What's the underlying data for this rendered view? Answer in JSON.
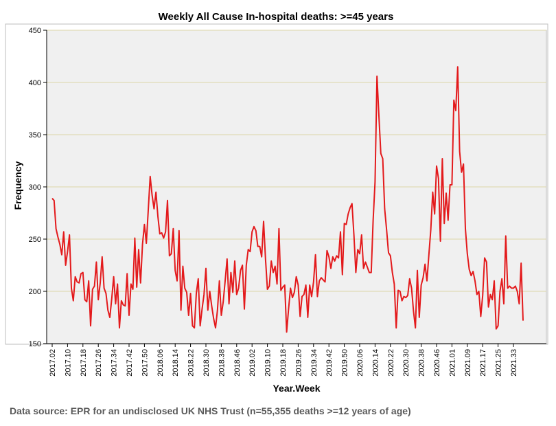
{
  "chart_data": {
    "type": "line",
    "title": "Weekly All Cause In-hospital deaths: >=45 years",
    "xlabel": "Year.Week",
    "ylabel": "Frequency",
    "ylim": [
      150,
      450
    ],
    "yticks": [
      150,
      200,
      250,
      300,
      350,
      400,
      450
    ],
    "x_tick_labels": [
      "2017.02",
      "2017.10",
      "2017.18",
      "2017.26",
      "2017.34",
      "2017.42",
      "2017.50",
      "2018.06",
      "2018.14",
      "2018.22",
      "2018.30",
      "2018.38",
      "2018.46",
      "2019.02",
      "2019.10",
      "2019.18",
      "2019.26",
      "2019.34",
      "2019.42",
      "2019.50",
      "2020.06",
      "2020.14",
      "2020.22",
      "2020.30",
      "2020.38",
      "2020.46",
      "2021.01",
      "2021.09",
      "2021.17",
      "2021.25",
      "2021.33"
    ],
    "gridlines": "horizontal",
    "line_color": "#e31a1c",
    "series": [
      {
        "name": "Frequency",
        "start_label": "2017.02",
        "values": [
          289,
          287,
          260,
          252,
          245,
          235,
          257,
          225,
          238,
          254,
          203,
          191,
          214,
          209,
          208,
          217,
          218,
          192,
          190,
          210,
          167,
          202,
          205,
          228,
          192,
          208,
          233,
          203,
          198,
          182,
          175,
          193,
          214,
          188,
          207,
          165,
          191,
          187,
          186,
          217,
          177,
          207,
          202,
          251,
          204,
          240,
          208,
          245,
          264,
          246,
          278,
          310,
          292,
          279,
          295,
          272,
          255,
          256,
          251,
          257,
          287,
          234,
          236,
          260,
          220,
          210,
          258,
          182,
          224,
          203,
          199,
          177,
          198,
          167,
          165,
          198,
          212,
          167,
          183,
          197,
          222,
          182,
          200,
          186,
          174,
          165,
          182,
          210,
          177,
          190,
          210,
          231,
          188,
          218,
          199,
          229,
          197,
          203,
          220,
          225,
          183,
          225,
          240,
          238,
          257,
          262,
          258,
          243,
          243,
          233,
          267,
          231,
          202,
          205,
          229,
          218,
          224,
          207,
          260,
          201,
          204,
          206,
          161,
          183,
          203,
          194,
          199,
          214,
          206,
          176,
          195,
          197,
          206,
          175,
          206,
          195,
          209,
          235,
          195,
          210,
          213,
          211,
          209,
          239,
          233,
          222,
          233,
          229,
          234,
          232,
          257,
          216,
          265,
          264,
          274,
          280,
          284,
          254,
          218,
          240,
          236,
          254,
          222,
          228,
          223,
          218,
          218,
          268,
          305,
          406,
          368,
          332,
          327,
          279,
          259,
          237,
          234,
          218,
          207,
          165,
          201,
          200,
          191,
          195,
          194,
          196,
          212,
          203,
          181,
          165,
          220,
          175,
          206,
          213,
          226,
          210,
          235,
          259,
          295,
          274,
          320,
          308,
          248,
          327,
          265,
          294,
          268,
          302,
          302,
          383,
          373,
          415,
          334,
          314,
          322,
          260,
          236,
          221,
          215,
          219,
          210,
          197,
          200,
          176,
          196,
          232,
          228,
          185,
          197,
          192,
          210,
          164,
          167,
          200,
          212,
          188,
          253,
          203,
          205,
          203,
          203,
          205,
          200,
          188,
          227,
          172
        ]
      }
    ]
  },
  "footer": {
    "source": "Data source: EPR for an undisclosed UK NHS Trust (n=55,355 deaths >=12 years of age)"
  }
}
